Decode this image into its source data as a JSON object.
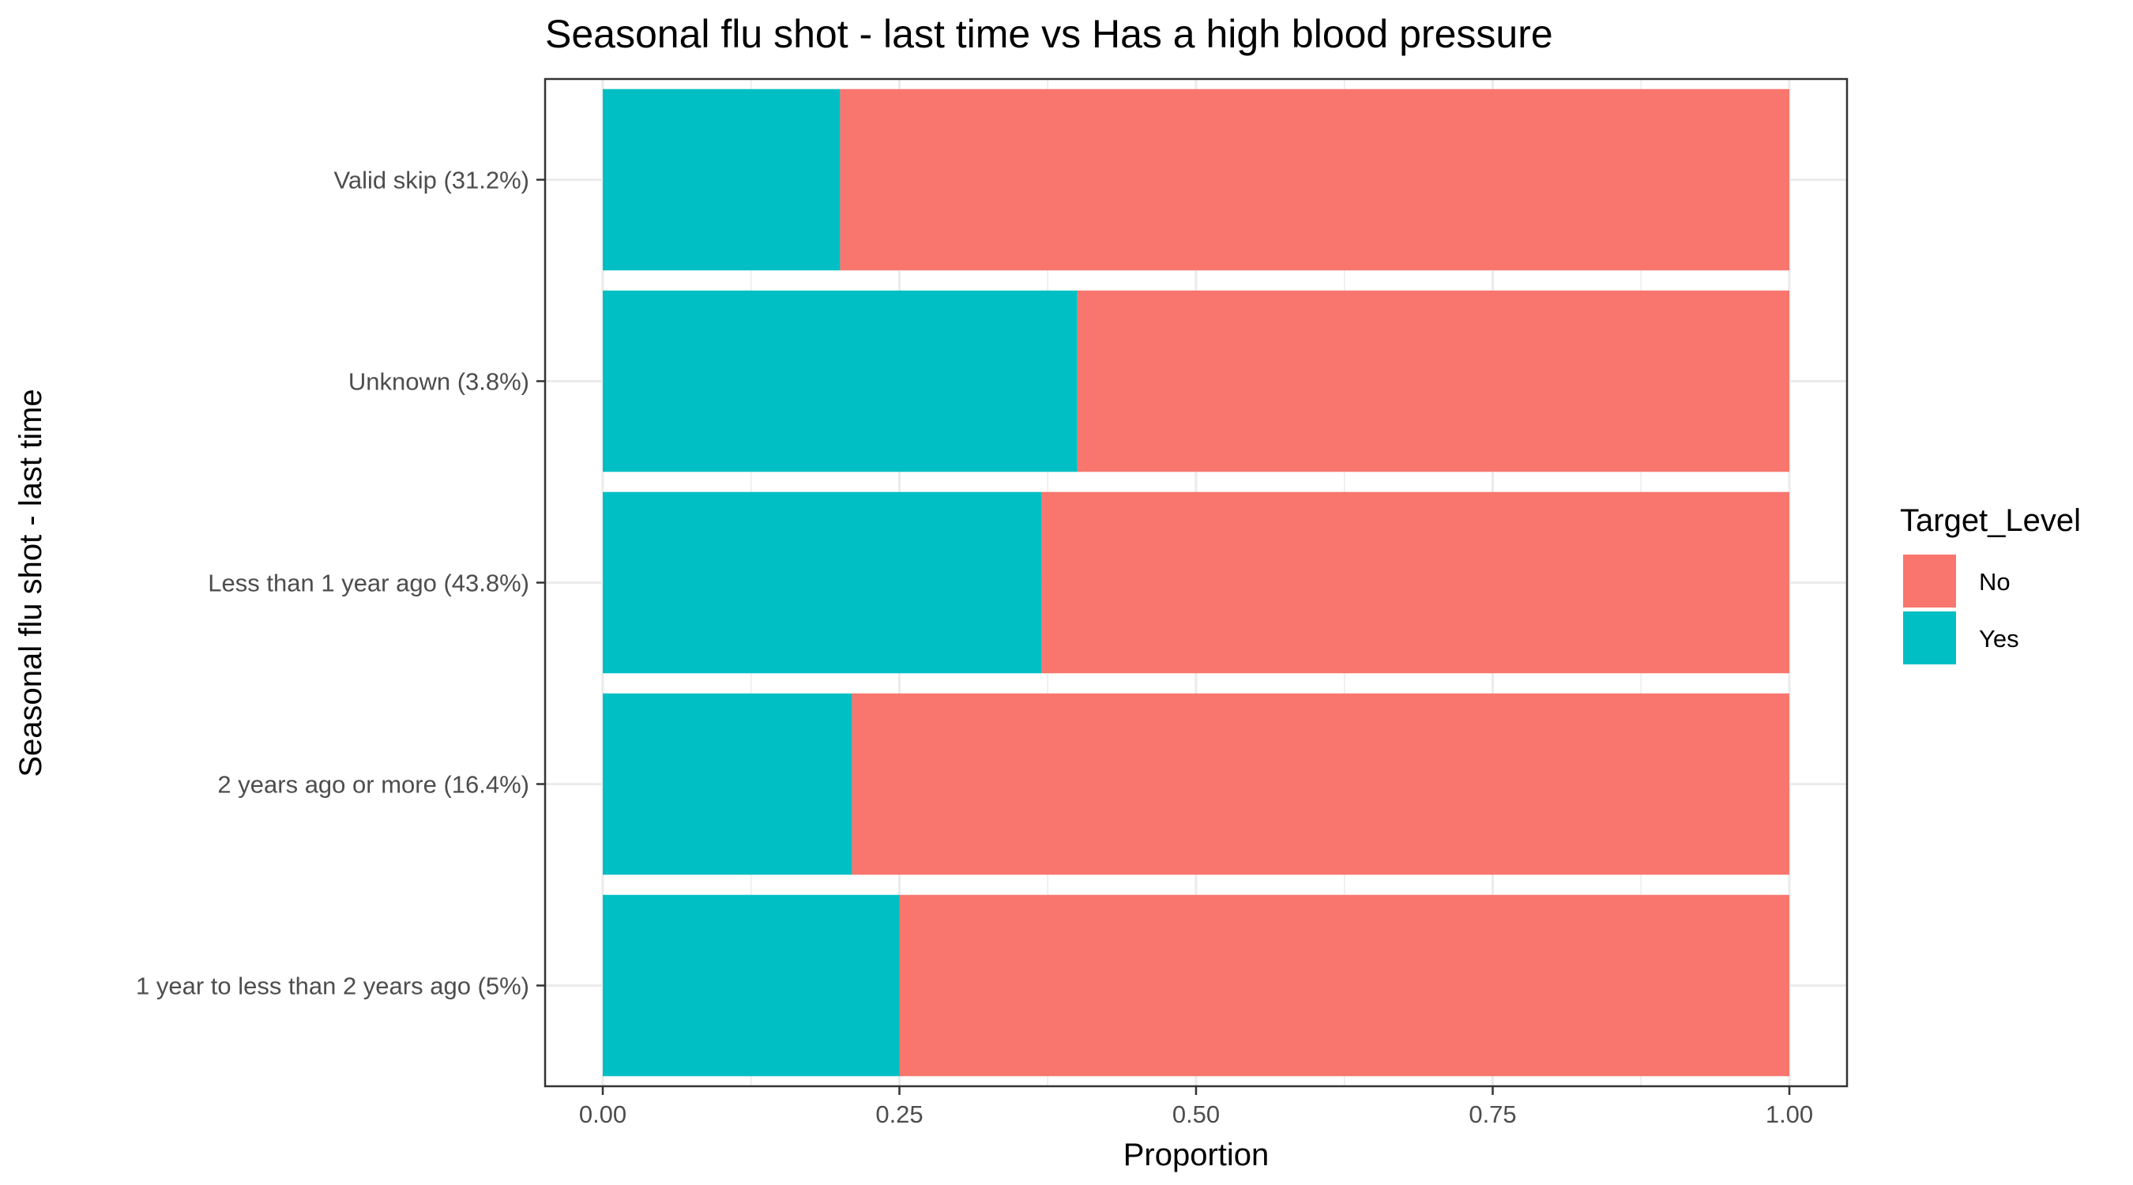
{
  "chart_data": {
    "type": "bar",
    "orientation": "horizontal",
    "stacked": true,
    "title": "Seasonal flu shot - last time vs Has a high blood pressure",
    "xlabel": "Proportion",
    "ylabel": "Seasonal flu shot - last time",
    "xlim": [
      -0.1,
      1.1
    ],
    "xticks": [
      0.0,
      0.25,
      0.5,
      0.75,
      1.0
    ],
    "xtick_labels": [
      "0.00",
      "0.25",
      "0.50",
      "0.75",
      "1.00"
    ],
    "categories": [
      "Valid skip (31.2%)",
      "Unknown (3.8%)",
      "Less than 1 year ago (43.8%)",
      "2 years ago or more (16.4%)",
      "1 year to less than 2 years ago (5%)"
    ],
    "series": [
      {
        "name": "Yes",
        "color": "#00BFC4",
        "values": [
          0.2,
          0.4,
          0.37,
          0.21,
          0.25
        ]
      },
      {
        "name": "No",
        "color": "#F8766D",
        "values": [
          0.8,
          0.6,
          0.63,
          0.79,
          0.75
        ]
      }
    ],
    "legend": {
      "title": "Target_Level",
      "placement": "right",
      "items": [
        {
          "label": "No",
          "color": "#F8766D"
        },
        {
          "label": "Yes",
          "color": "#00BFC4"
        }
      ]
    },
    "grid": true
  }
}
